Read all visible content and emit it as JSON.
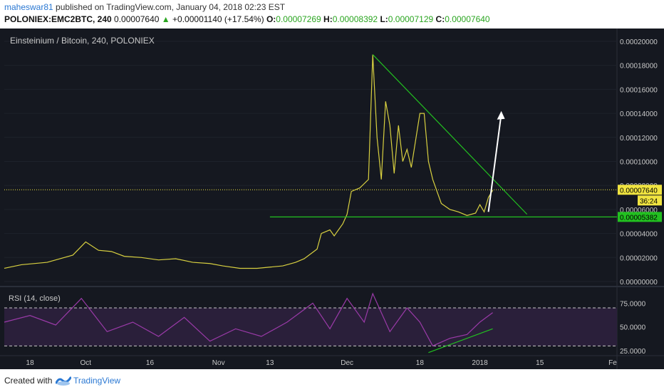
{
  "header": {
    "author": "maheswar81",
    "published": "published on TradingView.com, January 04, 2018 02:23 EST",
    "symbol": "POLONIEX:EMC2BTC, 240",
    "price": "0.00007640",
    "arrow": "▲",
    "change": "+0.00001140 (+17.54%)",
    "o_label": "O:",
    "o_value": "0.00007269",
    "h_label": "H:",
    "h_value": "0.00008392",
    "l_label": "L:",
    "l_value": "0.00007129",
    "c_label": "C:",
    "c_value": "0.00007640"
  },
  "footer": {
    "created": "Created with",
    "brand": "TradingView",
    "logo_icon": "tradingview-logo-icon"
  },
  "colors": {
    "background": "#151820",
    "price_line": "#d8d040",
    "trendline": "#22c020",
    "arrow": "#ffffff",
    "rsi": "#9a3aa8",
    "rsi_band": "#2a1f3a",
    "current_price_label": "#f0e440",
    "support_label": "#22c020",
    "header_green": "#2aa520",
    "author": "#2a78d3"
  },
  "chart_data": [
    {
      "type": "line",
      "title": "Einsteinium / Bitcoin, 240, POLONIEX",
      "ylim": [
        0,
        0.00021
      ],
      "y_ticks": [
        "0.00020000",
        "0.00018000",
        "0.00016000",
        "0.00014000",
        "0.00012000",
        "0.00010000",
        "0.00008000",
        "0.00006000",
        "0.00004000",
        "0.00002000",
        "0.00000000"
      ],
      "x_ticks": [
        "18",
        "Oct",
        "16",
        "Nov",
        "13",
        "Dec",
        "18",
        "2018",
        "15",
        "Fe"
      ],
      "x_date_range": [
        "2017-09-12",
        "2018-02-02"
      ],
      "price_labels": {
        "current": "0.00007640",
        "countdown": "36:24",
        "support": "0.00005382"
      },
      "series": [
        {
          "x": [
            "2017-09-12",
            "2017-09-16",
            "2017-09-22",
            "2017-09-28",
            "2017-10-01",
            "2017-10-04",
            "2017-10-07",
            "2017-10-10",
            "2017-10-14",
            "2017-10-18",
            "2017-10-22",
            "2017-10-26",
            "2017-10-30",
            "2017-11-02",
            "2017-11-06",
            "2017-11-10",
            "2017-11-13",
            "2017-11-16",
            "2017-11-19",
            "2017-11-21",
            "2017-11-24",
            "2017-11-25",
            "2017-11-27",
            "2017-11-28",
            "2017-11-30",
            "2017-12-01",
            "2017-12-02",
            "2017-12-04",
            "2017-12-06",
            "2017-12-07",
            "2017-12-08",
            "2017-12-09",
            "2017-12-10",
            "2017-12-11",
            "2017-12-12",
            "2017-12-13",
            "2017-12-14",
            "2017-12-15",
            "2017-12-16",
            "2017-12-18",
            "2017-12-19",
            "2017-12-20",
            "2017-12-21",
            "2017-12-23",
            "2017-12-25",
            "2017-12-27",
            "2017-12-29",
            "2017-12-31",
            "2018-01-01",
            "2018-01-02",
            "2018-01-03",
            "2018-01-04"
          ],
          "values": [
            1.1e-05,
            1.4e-05,
            1.6e-05,
            2.2e-05,
            3.3e-05,
            2.6e-05,
            2.5e-05,
            2.1e-05,
            2e-05,
            1.8e-05,
            1.9e-05,
            1.6e-05,
            1.5e-05,
            1.3e-05,
            1.1e-05,
            1.1e-05,
            1.2e-05,
            1.3e-05,
            1.6e-05,
            1.9e-05,
            2.7e-05,
            4e-05,
            4.3e-05,
            3.8e-05,
            4.8e-05,
            5.6e-05,
            7.5e-05,
            7.8e-05,
            8.5e-05,
            0.000189,
            0.00012,
            8.5e-05,
            0.00015,
            0.00013,
            9e-05,
            0.00013,
            0.0001,
            0.00011,
            9.5e-05,
            0.00014,
            0.00014,
            0.0001,
            8.5e-05,
            6.5e-05,
            6e-05,
            5.8e-05,
            5.5e-05,
            5.7e-05,
            6.4e-05,
            5.8e-05,
            7e-05,
            7.6e-05
          ]
        }
      ],
      "annotations": [
        {
          "kind": "descending-trendline",
          "from": [
            "2017-12-07",
            0.000189
          ],
          "to": [
            "2018-01-12",
            5.6e-05
          ]
        },
        {
          "kind": "support-line",
          "from": [
            "2017-11-13",
            5.38e-05
          ],
          "to": [
            "2018-02-02",
            5.38e-05
          ]
        },
        {
          "kind": "current-price-line",
          "y": 7.64e-05
        },
        {
          "kind": "arrow-up",
          "from": [
            "2018-01-03",
            5.8e-05
          ],
          "to": [
            "2018-01-06",
            0.000142
          ]
        }
      ]
    },
    {
      "type": "line",
      "title": "RSI (14, close)",
      "ylim": [
        15,
        95
      ],
      "y_ticks": [
        "75.0000",
        "50.0000",
        "25.0000"
      ],
      "band": [
        30,
        70
      ],
      "series": [
        {
          "x": [
            "2017-09-12",
            "2017-09-18",
            "2017-09-24",
            "2017-09-30",
            "2017-10-06",
            "2017-10-12",
            "2017-10-18",
            "2017-10-24",
            "2017-10-30",
            "2017-11-05",
            "2017-11-11",
            "2017-11-17",
            "2017-11-23",
            "2017-11-27",
            "2017-12-01",
            "2017-12-05",
            "2017-12-07",
            "2017-12-11",
            "2017-12-15",
            "2017-12-18",
            "2017-12-21",
            "2017-12-25",
            "2017-12-29",
            "2018-01-01",
            "2018-01-04"
          ],
          "values": [
            55,
            62,
            52,
            80,
            45,
            55,
            40,
            60,
            35,
            48,
            40,
            55,
            75,
            48,
            80,
            55,
            85,
            45,
            70,
            55,
            30,
            38,
            42,
            55,
            65
          ]
        }
      ],
      "annotations": [
        {
          "kind": "rising-trendline",
          "from": [
            "2017-12-20",
            23
          ],
          "to": [
            "2018-01-04",
            48
          ]
        }
      ]
    }
  ]
}
